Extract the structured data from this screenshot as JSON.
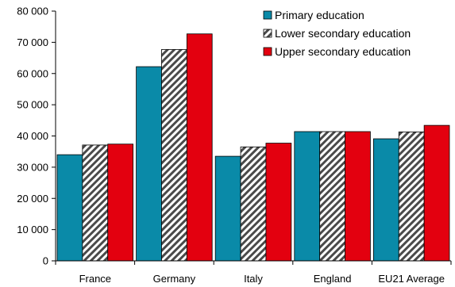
{
  "chart_data": {
    "type": "bar",
    "categories": [
      "France",
      "Germany",
      "Italy",
      "England",
      "EU21 Average"
    ],
    "series": [
      {
        "name": "Primary education",
        "color": "#0a8aa8",
        "pattern": "solid",
        "values": [
          34000,
          62200,
          33500,
          41400,
          39100
        ]
      },
      {
        "name": "Lower secondary education",
        "color": "#ffffff",
        "pattern": "diagonal-hatch",
        "values": [
          37100,
          67700,
          36500,
          41400,
          41300
        ]
      },
      {
        "name": "Upper secondary education",
        "color": "#e3000f",
        "pattern": "solid",
        "values": [
          37400,
          72700,
          37700,
          41400,
          43400
        ]
      }
    ],
    "ylim": [
      0,
      80000
    ],
    "yticks": [
      0,
      10000,
      20000,
      30000,
      40000,
      50000,
      60000,
      70000,
      80000
    ],
    "ytick_labels": [
      "0",
      "10 000",
      "20 000",
      "30 000",
      "40 000",
      "50 000",
      "60 000",
      "70 000",
      "80 000"
    ],
    "title": "",
    "xlabel": "",
    "ylabel": "",
    "grid": false,
    "legend_position": "top-right"
  }
}
